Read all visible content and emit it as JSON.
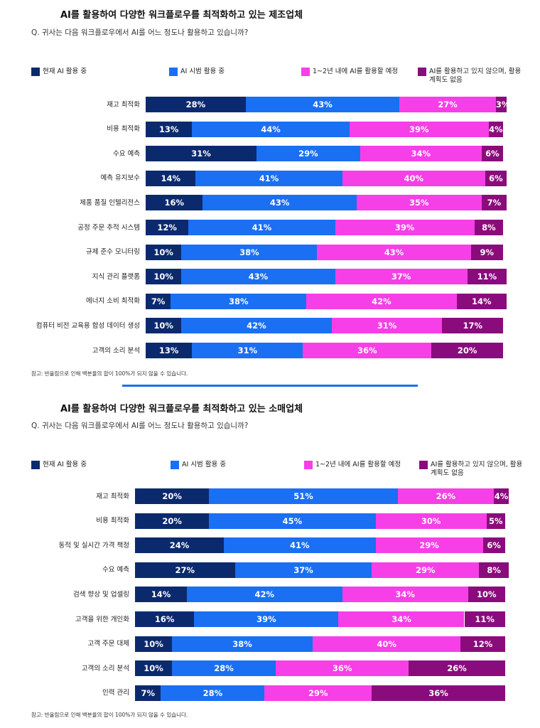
{
  "chart_data": [
    {
      "type": "bar",
      "orientation": "horizontal",
      "stacked": true,
      "title": "AI를 활용하여 다양한 워크플로우를 최적화하고 있는 제조업체",
      "subtitle": "Q. 귀사는 다음 워크플로우에서 AI를 어느 정도나 활용하고 있습니까?",
      "note": "참고: 반올림으로 인해 백분율의 합이 100%가 되지 않을 수 있습니다.",
      "categories": [
        "재고 최적화",
        "비용 최적화",
        "수요 예측",
        "예측 유지보수",
        "제품 품질 인텔리전스",
        "공정 주문 추적 시스템",
        "규제 준수 모니터링",
        "지식 관리 플랫폼",
        "에너지 소비 최적화",
        "컴퓨터 비전 교육용 합성 데이터 생성",
        "고객의 소리 분석"
      ],
      "series": [
        {
          "name": "현재 AI 활용 중",
          "color": "#0b2a6e",
          "values": [
            28,
            13,
            31,
            14,
            16,
            12,
            10,
            10,
            7,
            10,
            13
          ],
          "value_labels": [
            "28%",
            "13%",
            "31%",
            "14%",
            "16%",
            "12%",
            "10%",
            "10%",
            "7%",
            "10%",
            "13%"
          ]
        },
        {
          "name": "AI 시범 활용 중",
          "color": "#1b6ff2",
          "values": [
            43,
            44,
            29,
            41,
            43,
            41,
            38,
            43,
            38,
            42,
            31
          ],
          "value_labels": [
            "43%",
            "44%",
            "29%",
            "41%",
            "43%",
            "41%",
            "38%",
            "43%",
            "38%",
            "42%",
            "31%"
          ]
        },
        {
          "name": "1~2년 내에 AI를 활용할 예정",
          "color": "#f63fe6",
          "values": [
            27,
            39,
            34,
            40,
            35,
            39,
            43,
            37,
            42,
            31,
            36
          ],
          "value_labels": [
            "27%",
            "39%",
            "34%",
            "40%",
            "35%",
            "39%",
            "43%",
            "37%",
            "42%",
            "31%",
            "36%"
          ]
        },
        {
          "name": "AI를 활용하고 있지 않으며, 활용 계획도 없음",
          "color": "#8a0c7c",
          "values": [
            3,
            4,
            6,
            6,
            7,
            8,
            9,
            11,
            14,
            17,
            20
          ],
          "value_labels": [
            "3%",
            "4%",
            "6%",
            "6%",
            "7%",
            "8%",
            "9%",
            "11%",
            "14%",
            "17%",
            "20%"
          ]
        }
      ]
    },
    {
      "type": "bar",
      "orientation": "horizontal",
      "stacked": true,
      "title": "AI를 활용하여 다양한 워크플로우를 최적화하고 있는 소매업체",
      "subtitle": "Q. 귀사는 다음 워크플로우에서 AI를 어느 정도나 활용하고 있습니까?",
      "note": "참고: 반올림으로 인해 백분율의 합이 100%가 되지 않을 수 있습니다.",
      "categories": [
        "재고 최적화",
        "비용 최적화",
        "동적 및 실시간 가격 책정",
        "수요 예측",
        "검색 향상 및 업셀링",
        "고객을 위한 개인화",
        "고객 주문 대체",
        "고객의 소리 분석",
        "인력 관리"
      ],
      "series": [
        {
          "name": "현재 AI 활용 중",
          "color": "#0b2a6e",
          "values": [
            20,
            20,
            24,
            27,
            14,
            16,
            10,
            10,
            7
          ],
          "value_labels": [
            "20%",
            "20%",
            "24%",
            "27%",
            "14%",
            "16%",
            "10%",
            "10%",
            "7%"
          ]
        },
        {
          "name": "AI 시범 활용 중",
          "color": "#1b6ff2",
          "values": [
            51,
            45,
            41,
            37,
            42,
            39,
            38,
            28,
            28
          ],
          "value_labels": [
            "51%",
            "45%",
            "41%",
            "37%",
            "42%",
            "39%",
            "38%",
            "28%",
            "28%"
          ]
        },
        {
          "name": "1~2년 내에 AI를 활용할 예정",
          "color": "#f63fe6",
          "values": [
            26,
            30,
            29,
            29,
            34,
            34,
            40,
            36,
            29
          ],
          "value_labels": [
            "26%",
            "30%",
            "29%",
            "29%",
            "34%",
            "34%",
            "40%",
            "36%",
            "29%"
          ]
        },
        {
          "name": "AI를 활용하고 있지 않으며, 활용 계획도 없음",
          "color": "#8a0c7c",
          "values": [
            4,
            5,
            6,
            8,
            10,
            11,
            12,
            26,
            36
          ],
          "value_labels": [
            "4%",
            "5%",
            "6%",
            "8%",
            "10%",
            "11%",
            "12%",
            "26%",
            "36%"
          ]
        }
      ]
    }
  ]
}
